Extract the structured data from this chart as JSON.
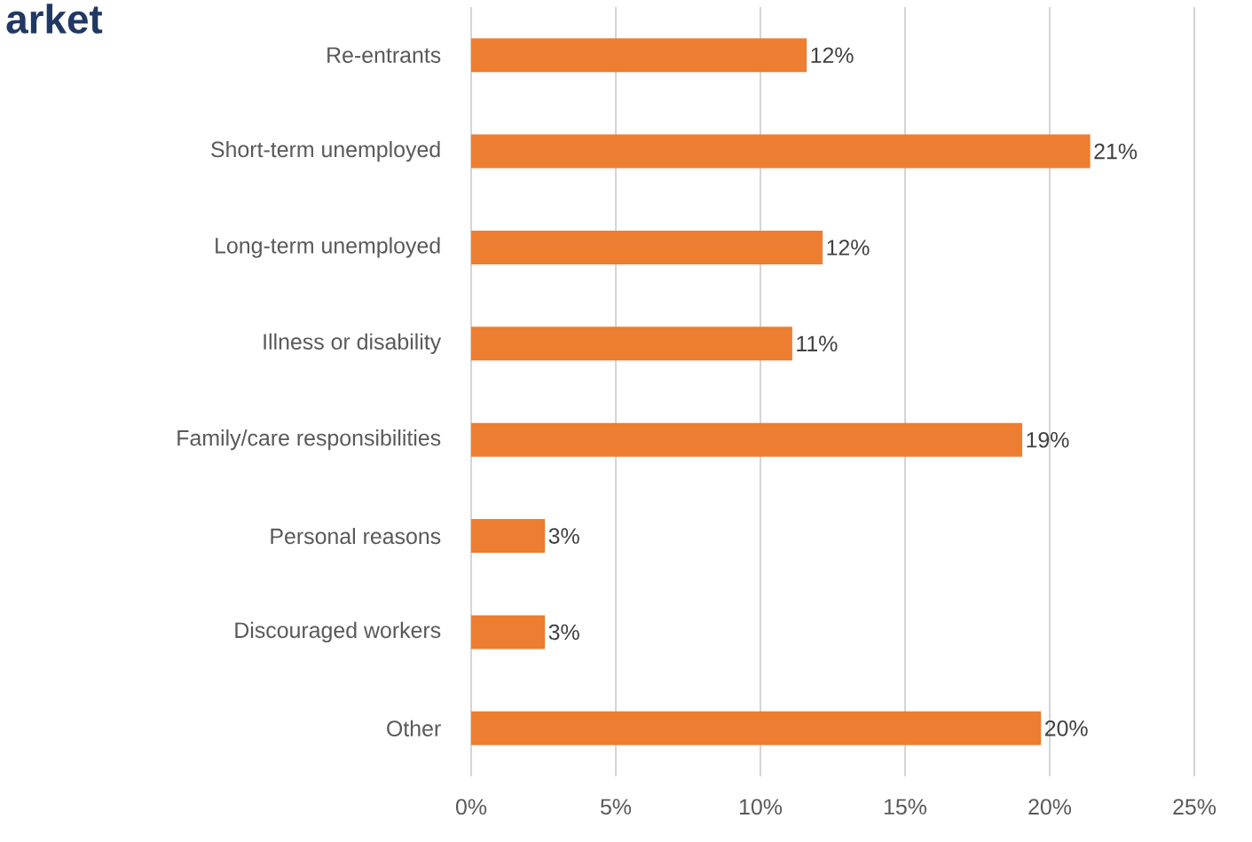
{
  "chart_data": {
    "type": "bar",
    "orientation": "horizontal",
    "title": "arket",
    "categories": [
      "Re-entrants",
      "Short-term unemployed",
      "Long-term unemployed",
      "Illness or disability",
      "Family/care responsibilities",
      "Personal reasons",
      "Discouraged workers",
      "Other"
    ],
    "values": [
      11.6,
      21.4,
      12.15,
      11.1,
      19.05,
      2.55,
      2.55,
      19.7
    ],
    "value_labels": [
      "12%",
      "21%",
      "12%",
      "11%",
      "19%",
      "3%",
      "3%",
      "20%"
    ],
    "color": "#ed7d31",
    "xlim": [
      0,
      25
    ],
    "xticks": [
      {
        "value": 0,
        "label": "0%"
      },
      {
        "value": 5,
        "label": "5%"
      },
      {
        "value": 10,
        "label": "10%"
      },
      {
        "value": 15,
        "label": "15%"
      },
      {
        "value": 20,
        "label": "20%"
      },
      {
        "value": 25,
        "label": "25%"
      }
    ],
    "grid": "x"
  }
}
